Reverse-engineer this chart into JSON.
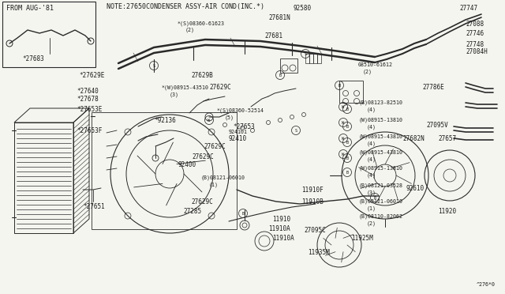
{
  "bg_color": "#f5f5f0",
  "line_color": "#2a2a2a",
  "text_color": "#1a1a1a",
  "diagram_code": "^276*0",
  "note_text": "NOTE:27650CONDENSER ASSY-AIR COND(INC.*)",
  "inset_label": "FROM AUG-'81",
  "inset_part": "*27683",
  "fs_label": 5.5,
  "fs_note": 6.0,
  "fs_tiny": 4.8
}
